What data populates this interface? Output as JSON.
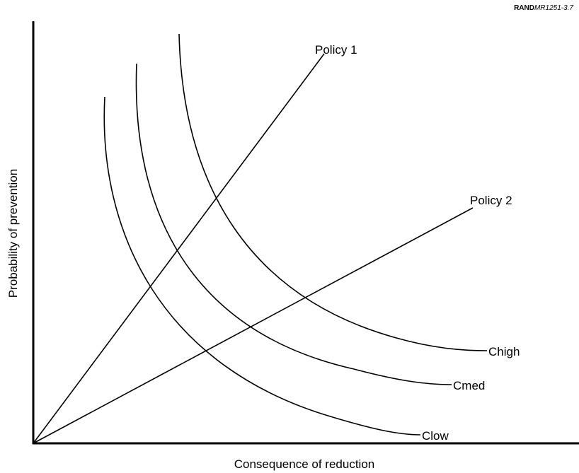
{
  "source_id": {
    "prefix": "RAND",
    "number": "MR1251-3.7"
  },
  "axes": {
    "y_label": "Probability of prevention",
    "x_label": "Consequence of reduction"
  },
  "policies": [
    {
      "label": "Policy 1"
    },
    {
      "label": "Policy 2"
    }
  ],
  "curves": [
    {
      "label": "Chigh"
    },
    {
      "label": "Cmed"
    },
    {
      "label": "Clow"
    }
  ]
}
